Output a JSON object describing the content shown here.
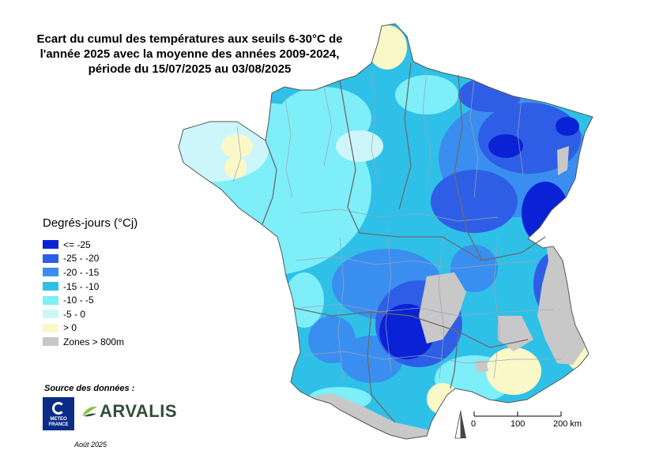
{
  "title": {
    "line1": "Ecart du cumul des températures aux seuils 6-30°C de",
    "line2": "l'année 2025 avec la moyenne des années 2009-2024,",
    "line3": "période du 15/07/2025 au 03/08/2025"
  },
  "legend": {
    "title": "Degrés-jours (°Cj)",
    "items": [
      {
        "label": "<= -25",
        "color": "#0a22d6"
      },
      {
        "label": "-25 - -20",
        "color": "#2f5ee6"
      },
      {
        "label": "-20 - -15",
        "color": "#3a8ef0"
      },
      {
        "label": "-15 - -10",
        "color": "#2fc0e8"
      },
      {
        "label": "-10 - -5",
        "color": "#7eeef8"
      },
      {
        "label": "-5 - 0",
        "color": "#cdf6fb"
      },
      {
        "label": "> 0",
        "color": "#fbf8c8"
      },
      {
        "label": "Zones > 800m",
        "color": "#c8c8c8"
      }
    ]
  },
  "source": {
    "label": "Source des données :",
    "meteo_france_line1": "METEO",
    "meteo_france_line2": "FRANCE",
    "arvalis": "ARVALIS",
    "date": "Août 2025"
  },
  "scale": {
    "labels": [
      "0",
      "100",
      "200 km"
    ]
  },
  "colors": {
    "text": "#000000",
    "region_border": "#6b6b6b",
    "department_border": "#9aa3b5"
  }
}
